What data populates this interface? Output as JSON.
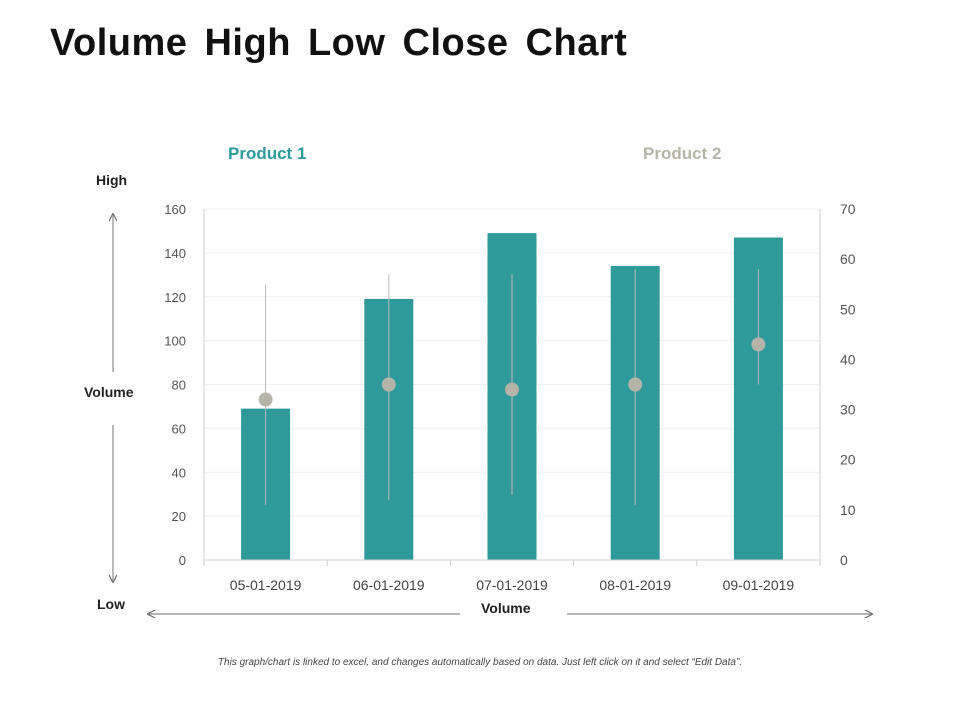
{
  "title": "Volume High Low Close Chart",
  "footnote": "This graph/chart is linked to excel, and changes automatically based on data. Just left click on it and select “Edit Data”.",
  "side_labels": {
    "high": "High",
    "volume": "Volume",
    "low": "Low",
    "bottom_volume": "Volume"
  },
  "colors": {
    "bar": "#2e9b9a",
    "close_marker": "#b5b4a9",
    "hl_line": "#bbbbbb"
  },
  "chart_data": {
    "type": "bar",
    "categories": [
      "05-01-2019",
      "06-01-2019",
      "07-01-2019",
      "08-01-2019",
      "09-01-2019"
    ],
    "legend": [
      "Product 1",
      "Product 2"
    ],
    "legend_placement": "top",
    "grid": true,
    "y_left": {
      "ticks": [
        0,
        20,
        40,
        60,
        80,
        100,
        120,
        140,
        160
      ],
      "lim": [
        0,
        160
      ]
    },
    "y_right": {
      "ticks": [
        0,
        10,
        20,
        30,
        40,
        50,
        60,
        70
      ],
      "lim": [
        0,
        70
      ]
    },
    "series": [
      {
        "name": "Product 1",
        "type": "bar",
        "axis": "left",
        "values": [
          69,
          119,
          149,
          134,
          147
        ]
      },
      {
        "name": "Product 2",
        "type": "high-low-close",
        "axis": "right",
        "high": [
          55,
          57,
          57,
          58,
          58
        ],
        "low": [
          11,
          12,
          13,
          11,
          35
        ],
        "close": [
          32,
          35,
          34,
          35,
          43
        ]
      }
    ]
  }
}
